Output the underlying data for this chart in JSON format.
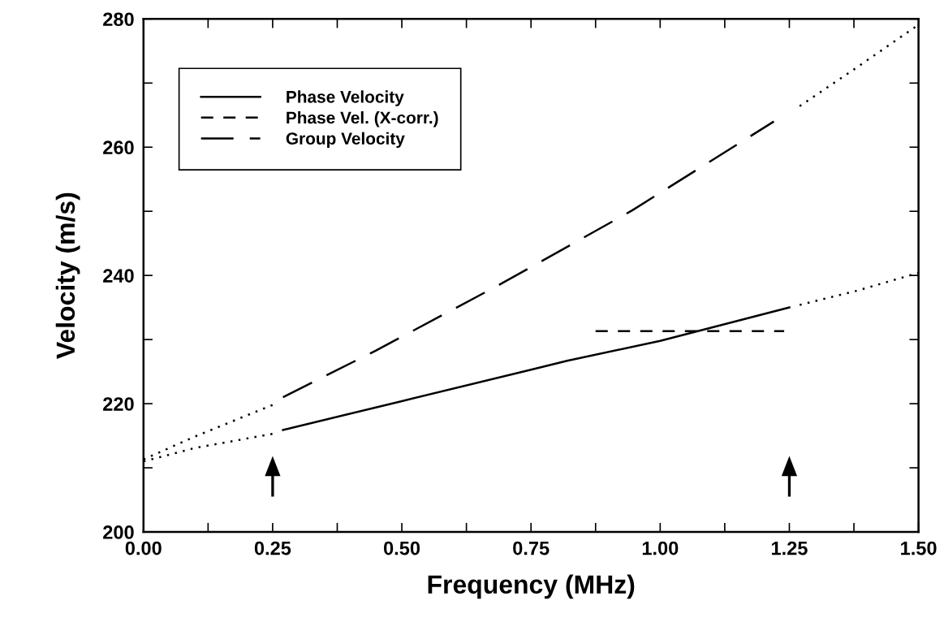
{
  "chart_data": {
    "type": "line",
    "xlabel": "Frequency (MHz)",
    "ylabel": "Velocity (m/s)",
    "xlim": [
      0,
      1.5
    ],
    "ylim": [
      200,
      280
    ],
    "xticks": [
      {
        "value": 0,
        "label": "0.00"
      },
      {
        "value": 0.125,
        "label": null
      },
      {
        "value": 0.25,
        "label": "0.25"
      },
      {
        "value": 0.375,
        "label": null
      },
      {
        "value": 0.5,
        "label": "0.50"
      },
      {
        "value": 0.625,
        "label": null
      },
      {
        "value": 0.75,
        "label": "0.75"
      },
      {
        "value": 0.875,
        "label": null
      },
      {
        "value": 1.0,
        "label": "1.00"
      },
      {
        "value": 1.125,
        "label": null
      },
      {
        "value": 1.25,
        "label": "1.25"
      },
      {
        "value": 1.375,
        "label": null
      },
      {
        "value": 1.5,
        "label": "1.50"
      }
    ],
    "yticks": [
      200,
      {
        "value": 210,
        "label": null
      },
      220,
      {
        "value": 230,
        "label": null
      },
      240,
      {
        "value": 250,
        "label": null
      },
      260,
      {
        "value": 270,
        "label": null
      },
      280
    ],
    "grid": false,
    "legend": "top left",
    "marker": "none",
    "series": [
      {
        "name": "Phase Velocity",
        "color": "#000000",
        "line_style": "solid",
        "x": [
          0.27,
          0.5,
          0.75,
          0.82,
          1.0,
          1.25
        ],
        "values": [
          215.9,
          220.4,
          225.3,
          226.7,
          229.8,
          235.0
        ]
      },
      {
        "name": "Phase Vel. (X-corr.)",
        "color": "#000000",
        "line_style": "dashed",
        "x": [
          0.875,
          1.24
        ],
        "values": [
          231.3,
          231.3
        ]
      },
      {
        "name": "Group Velocity",
        "color": "#000000",
        "line_style": "longdash",
        "x": [
          0.27,
          0.45,
          0.69,
          0.945,
          1.22
        ],
        "values": [
          221.0,
          228.3,
          238.6,
          250.1,
          264.0
        ]
      },
      {
        "color": "#000000",
        "line_style": "dotted",
        "x": [
          0,
          0.1,
          0.25
        ],
        "values": [
          211.0,
          213.1,
          215.3
        ]
      },
      {
        "color": "#000000",
        "line_style": "dotted",
        "x": [
          1.27,
          1.38,
          1.5
        ],
        "values": [
          235.4,
          237.6,
          240.4
        ]
      },
      {
        "color": "#000000",
        "line_style": "dotted",
        "x": [
          0,
          0.1,
          0.25
        ],
        "values": [
          211.3,
          214.9,
          219.8
        ]
      },
      {
        "color": "#000000",
        "line_style": "dotted",
        "x": [
          1.27,
          1.38,
          1.5
        ],
        "values": [
          266.4,
          272.4,
          279.1
        ]
      }
    ]
  }
}
